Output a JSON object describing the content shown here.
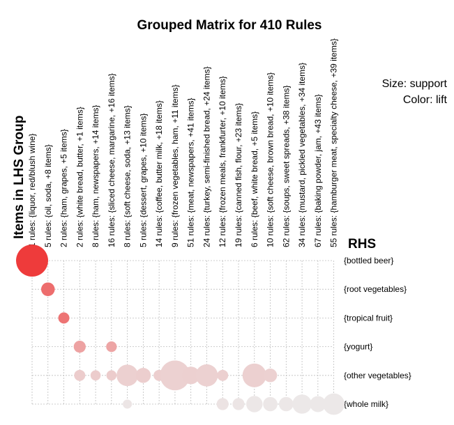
{
  "chart_data": {
    "type": "scatter",
    "title": "Grouped Matrix for 410 Rules",
    "legend": {
      "size_text": "Size: support",
      "color_text": "Color: lift"
    },
    "xlabel": "Items in LHS Group",
    "ylabel": "RHS",
    "grid": true,
    "lhs_groups": [
      "1 rules: {liquor, red/blush wine}",
      "5 rules: {oil, soda, +8 items}",
      "2 rules: {ham, grapes, +5 items}",
      "2 rules: {white bread, butter, +1 items}",
      "8 rules: {ham, newspapers, +14 items}",
      "16 rules: {sliced cheese, margarine, +16 items}",
      "8 rules: {soft cheese, soda, +13 items}",
      "5 rules: {dessert, grapes, +10 items}",
      "14 rules: {coffee, butter milk, +18 items}",
      "9 rules: {frozen vegetables, ham, +11 items}",
      "51 rules: {meat, newspapers, +41 items}",
      "24 rules: {turkey, semi-finished bread, +24 items}",
      "12 rules: {frozen meals, frankfurter, +10 items}",
      "19 rules: {canned fish, flour, +23 items}",
      "6 rules: {beef, white bread, +5 items}",
      "10 rules: {soft cheese, brown bread, +10 items}",
      "62 rules: {soups, sweet spreads, +38 items}",
      "34 rules: {mustard, pickled vegetables, +34 items}",
      "67 rules: {baking powder, jam, +43 items}",
      "55 rules: {hamburger meat, specialty cheese, +39 items}"
    ],
    "rhs_items": [
      "{bottled beer}",
      "{root vegetables}",
      "{tropical fruit}",
      "{yogurt}",
      "{other vegetables}",
      "{whole milk}"
    ],
    "points": [
      {
        "lhs": 0,
        "rhs": 0,
        "support": 1.0,
        "lift": 1.0
      },
      {
        "lhs": 1,
        "rhs": 1,
        "support": 0.18,
        "lift": 0.72
      },
      {
        "lhs": 2,
        "rhs": 2,
        "support": 0.12,
        "lift": 0.68
      },
      {
        "lhs": 3,
        "rhs": 3,
        "support": 0.14,
        "lift": 0.42
      },
      {
        "lhs": 5,
        "rhs": 3,
        "support": 0.11,
        "lift": 0.4
      },
      {
        "lhs": 3,
        "rhs": 4,
        "support": 0.12,
        "lift": 0.18
      },
      {
        "lhs": 4,
        "rhs": 4,
        "support": 0.1,
        "lift": 0.18
      },
      {
        "lhs": 5,
        "rhs": 4,
        "support": 0.1,
        "lift": 0.18
      },
      {
        "lhs": 6,
        "rhs": 4,
        "support": 0.45,
        "lift": 0.16
      },
      {
        "lhs": 7,
        "rhs": 4,
        "support": 0.22,
        "lift": 0.17
      },
      {
        "lhs": 8,
        "rhs": 4,
        "support": 0.12,
        "lift": 0.17
      },
      {
        "lhs": 9,
        "rhs": 4,
        "support": 0.87,
        "lift": 0.15
      },
      {
        "lhs": 10,
        "rhs": 4,
        "support": 0.3,
        "lift": 0.16
      },
      {
        "lhs": 11,
        "rhs": 4,
        "support": 0.48,
        "lift": 0.15
      },
      {
        "lhs": 12,
        "rhs": 4,
        "support": 0.12,
        "lift": 0.16
      },
      {
        "lhs": 14,
        "rhs": 4,
        "support": 0.55,
        "lift": 0.16
      },
      {
        "lhs": 15,
        "rhs": 4,
        "support": 0.18,
        "lift": 0.15
      },
      {
        "lhs": 6,
        "rhs": 5,
        "support": 0.08,
        "lift": 0.04
      },
      {
        "lhs": 12,
        "rhs": 5,
        "support": 0.14,
        "lift": 0.05
      },
      {
        "lhs": 13,
        "rhs": 5,
        "support": 0.14,
        "lift": 0.04
      },
      {
        "lhs": 14,
        "rhs": 5,
        "support": 0.26,
        "lift": 0.03
      },
      {
        "lhs": 15,
        "rhs": 5,
        "support": 0.2,
        "lift": 0.03
      },
      {
        "lhs": 16,
        "rhs": 5,
        "support": 0.2,
        "lift": 0.03
      },
      {
        "lhs": 17,
        "rhs": 5,
        "support": 0.36,
        "lift": 0.02
      },
      {
        "lhs": 18,
        "rhs": 5,
        "support": 0.25,
        "lift": 0.02
      },
      {
        "lhs": 19,
        "rhs": 5,
        "support": 0.45,
        "lift": 0.02
      }
    ],
    "colors": {
      "high_lift": "#ee3b3b",
      "low_lift": "#ececec",
      "grid": "#bdbdbd",
      "text": "#000000"
    }
  }
}
